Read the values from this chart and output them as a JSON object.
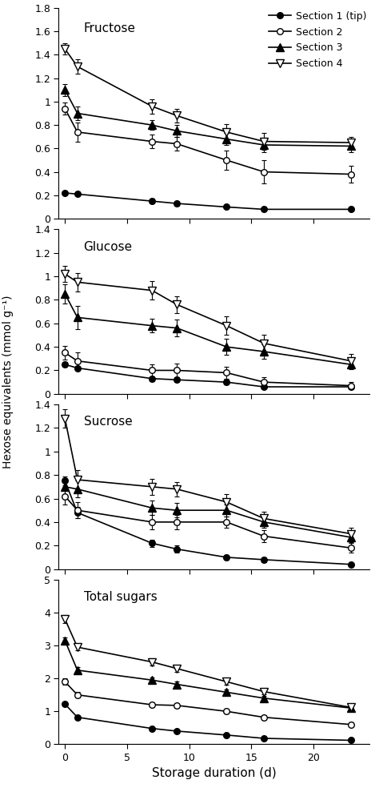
{
  "x": [
    0,
    1,
    7,
    9,
    13,
    16,
    23
  ],
  "fructose": {
    "s1": [
      0.22,
      0.21,
      0.15,
      0.13,
      0.1,
      0.08,
      0.08
    ],
    "s2": [
      0.94,
      0.74,
      0.66,
      0.64,
      0.5,
      0.4,
      0.38
    ],
    "s3": [
      1.1,
      0.9,
      0.8,
      0.75,
      0.68,
      0.63,
      0.62
    ],
    "s4": [
      1.45,
      1.3,
      0.96,
      0.88,
      0.74,
      0.66,
      0.65
    ],
    "s1_err": [
      0.01,
      0.01,
      0.02,
      0.02,
      0.01,
      0.01,
      0.01
    ],
    "s2_err": [
      0.05,
      0.08,
      0.06,
      0.06,
      0.08,
      0.1,
      0.07
    ],
    "s3_err": [
      0.05,
      0.06,
      0.04,
      0.05,
      0.05,
      0.06,
      0.05
    ],
    "s4_err": [
      0.05,
      0.06,
      0.06,
      0.06,
      0.07,
      0.07,
      0.05
    ],
    "ylim": [
      0.0,
      1.8
    ],
    "yticks": [
      0.0,
      0.2,
      0.4,
      0.6,
      0.8,
      1.0,
      1.2,
      1.4,
      1.6,
      1.8
    ],
    "title": "Fructose"
  },
  "glucose": {
    "s1": [
      0.25,
      0.22,
      0.13,
      0.12,
      0.1,
      0.06,
      0.06
    ],
    "s2": [
      0.35,
      0.28,
      0.2,
      0.2,
      0.18,
      0.1,
      0.07
    ],
    "s3": [
      0.85,
      0.65,
      0.58,
      0.56,
      0.4,
      0.36,
      0.25
    ],
    "s4": [
      1.02,
      0.95,
      0.88,
      0.76,
      0.58,
      0.43,
      0.28
    ],
    "s1_err": [
      0.02,
      0.02,
      0.02,
      0.02,
      0.02,
      0.01,
      0.01
    ],
    "s2_err": [
      0.06,
      0.07,
      0.05,
      0.06,
      0.05,
      0.04,
      0.03
    ],
    "s3_err": [
      0.08,
      0.1,
      0.06,
      0.07,
      0.07,
      0.06,
      0.04
    ],
    "s4_err": [
      0.07,
      0.08,
      0.08,
      0.07,
      0.08,
      0.07,
      0.06
    ],
    "ylim": [
      0.0,
      1.4
    ],
    "yticks": [
      0.0,
      0.2,
      0.4,
      0.6,
      0.8,
      1.0,
      1.2,
      1.4
    ],
    "title": "Glucose"
  },
  "sucrose": {
    "s1": [
      0.75,
      0.48,
      0.22,
      0.17,
      0.1,
      0.08,
      0.04
    ],
    "s2": [
      0.62,
      0.5,
      0.4,
      0.4,
      0.4,
      0.28,
      0.18
    ],
    "s3": [
      0.7,
      0.68,
      0.52,
      0.5,
      0.5,
      0.4,
      0.27
    ],
    "s4": [
      1.28,
      0.76,
      0.7,
      0.68,
      0.57,
      0.43,
      0.3
    ],
    "s1_err": [
      0.04,
      0.05,
      0.03,
      0.03,
      0.02,
      0.02,
      0.01
    ],
    "s2_err": [
      0.07,
      0.07,
      0.06,
      0.06,
      0.05,
      0.05,
      0.04
    ],
    "s3_err": [
      0.07,
      0.07,
      0.06,
      0.06,
      0.05,
      0.05,
      0.04
    ],
    "s4_err": [
      0.08,
      0.08,
      0.07,
      0.06,
      0.07,
      0.06,
      0.05
    ],
    "ylim": [
      0.0,
      1.4
    ],
    "yticks": [
      0.0,
      0.2,
      0.4,
      0.6,
      0.8,
      1.0,
      1.2,
      1.4
    ],
    "title": "Sucrose"
  },
  "total": {
    "s1": [
      1.22,
      0.82,
      0.48,
      0.4,
      0.28,
      0.18,
      0.12
    ],
    "s2": [
      1.9,
      1.5,
      1.2,
      1.18,
      1.0,
      0.82,
      0.6
    ],
    "s3": [
      3.15,
      2.25,
      1.95,
      1.82,
      1.58,
      1.4,
      1.1
    ],
    "s4": [
      3.8,
      2.95,
      2.5,
      2.3,
      1.9,
      1.6,
      1.12
    ],
    "s1_err": [
      0.05,
      0.05,
      0.04,
      0.04,
      0.03,
      0.03,
      0.02
    ],
    "s2_err": [
      0.1,
      0.08,
      0.07,
      0.07,
      0.07,
      0.07,
      0.06
    ],
    "s3_err": [
      0.1,
      0.09,
      0.09,
      0.08,
      0.08,
      0.08,
      0.07
    ],
    "s4_err": [
      0.12,
      0.1,
      0.1,
      0.09,
      0.1,
      0.09,
      0.08
    ],
    "ylim": [
      0.0,
      5.0
    ],
    "yticks": [
      0,
      1,
      2,
      3,
      4,
      5
    ],
    "title": "Total sugars"
  },
  "legend_labels": [
    "Section 1 (tip)",
    "Section 2",
    "Section 3",
    "Section 4"
  ],
  "ylabel": "Hexose equivalents (mmol g⁻¹)",
  "xlabel": "Storage duration (d)",
  "xlim": [
    -0.5,
    24.5
  ],
  "xticks": [
    0,
    5,
    10,
    15,
    20
  ]
}
